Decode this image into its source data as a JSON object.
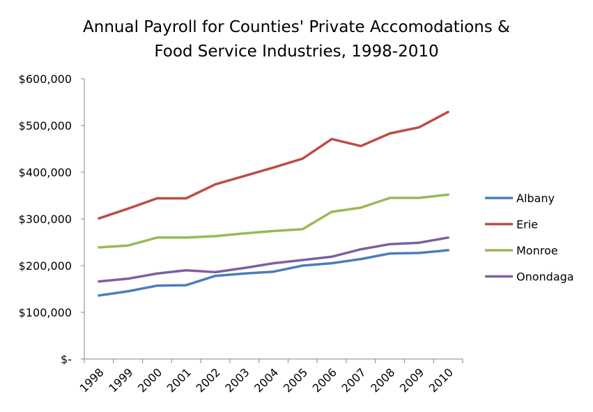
{
  "chart_data": {
    "type": "line",
    "title_lines": [
      "Annual Payroll for Counties' Private Accomodations &",
      "Food Service Industries, 1998-2010"
    ],
    "xlabel": "",
    "ylabel": "",
    "categories": [
      "1998",
      "1999",
      "2000",
      "2001",
      "2002",
      "2003",
      "2004",
      "2005",
      "2006",
      "2007",
      "2008",
      "2009",
      "2010"
    ],
    "ylim": [
      0,
      600000
    ],
    "yticks": [
      0,
      100000,
      200000,
      300000,
      400000,
      500000,
      600000
    ],
    "ytick_labels": [
      "$-",
      "$100,000",
      "$200,000",
      "$300,000",
      "$400,000",
      "$500,000",
      "$600,000"
    ],
    "grid": false,
    "legend_position": "right",
    "series": [
      {
        "name": "Albany",
        "color": "#4A7EBB",
        "values": [
          136000,
          145000,
          157000,
          158000,
          178000,
          183000,
          187000,
          200000,
          205000,
          214000,
          226000,
          227000,
          233000
        ]
      },
      {
        "name": "Erie",
        "color": "#BE4B48",
        "values": [
          301000,
          322000,
          344000,
          344000,
          374000,
          392000,
          410000,
          429000,
          471000,
          456000,
          483000,
          496000,
          529000
        ]
      },
      {
        "name": "Monroe",
        "color": "#98B954",
        "values": [
          239000,
          243000,
          260000,
          260000,
          263000,
          269000,
          274000,
          278000,
          315000,
          324000,
          345000,
          345000,
          352000
        ]
      },
      {
        "name": "Onondaga",
        "color": "#7D60A0",
        "values": [
          166000,
          172000,
          183000,
          190000,
          186000,
          195000,
          205000,
          212000,
          219000,
          235000,
          246000,
          249000,
          260000
        ]
      }
    ]
  }
}
